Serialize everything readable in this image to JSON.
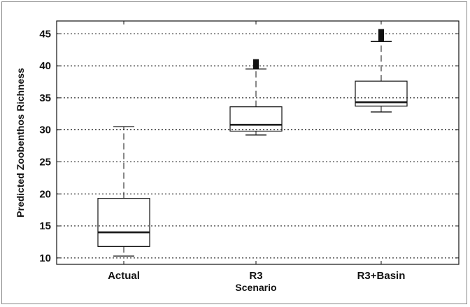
{
  "chart_data": {
    "type": "box",
    "ylabel": "Predicted Zoobenthos Richness",
    "xlabel": "Scenario",
    "categories": [
      "Actual",
      "R3",
      "R3+Basin"
    ],
    "ylim": [
      9,
      47
    ],
    "yticks": [
      10,
      15,
      20,
      25,
      30,
      35,
      40,
      45
    ],
    "grid": "horizontal-dotted",
    "boxes": [
      {
        "label": "Actual",
        "whisker_low": 10.3,
        "q1": 11.8,
        "median": 14.0,
        "q3": 19.3,
        "whisker_high": 30.5,
        "outliers": []
      },
      {
        "label": "R3",
        "whisker_low": 29.2,
        "q1": 29.8,
        "median": 30.8,
        "q3": 33.6,
        "whisker_high": 39.5,
        "outliers": [
          40.0,
          40.3,
          40.6
        ]
      },
      {
        "label": "R3+Basin",
        "whisker_low": 32.8,
        "q1": 33.7,
        "median": 34.3,
        "q3": 37.6,
        "whisker_high": 43.8,
        "outliers": [
          44.3,
          44.7,
          45.0,
          45.3
        ]
      }
    ],
    "colors": {
      "box": "#111111",
      "median": "#111111",
      "grid": "#000000",
      "frame": "#111111"
    }
  }
}
